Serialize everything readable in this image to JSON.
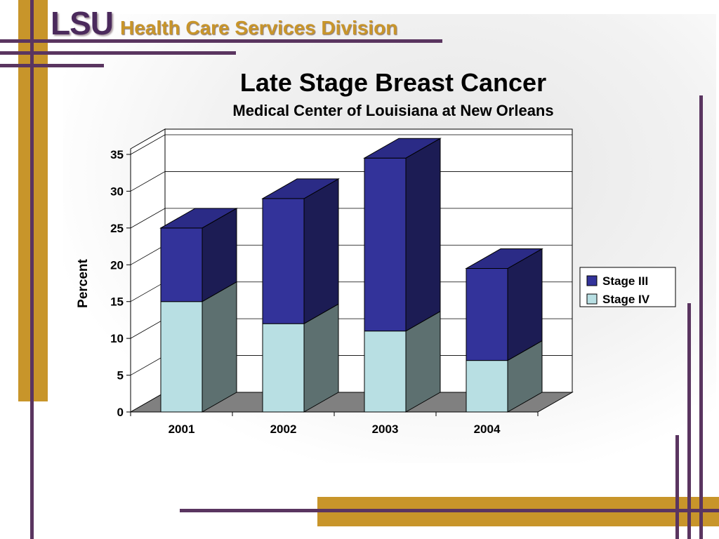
{
  "header": {
    "logo_text": "LSU",
    "division_text": "Health Care Services Division"
  },
  "colors": {
    "purple": "#5a3560",
    "gold": "#c8952a",
    "stage_iii": "#33339a",
    "stage_iv": "#b8dfe3"
  },
  "chart_data": {
    "type": "bar",
    "stacked": true,
    "three_d": true,
    "title": "Late Stage Breast Cancer",
    "subtitle": "Medical Center of Louisiana at New Orleans",
    "ylabel": "Percent",
    "xlabel": "",
    "categories": [
      "2001",
      "2002",
      "2003",
      "2004"
    ],
    "series": [
      {
        "name": "Stage IV",
        "values": [
          15,
          12,
          11,
          7
        ]
      },
      {
        "name": "Stage III",
        "values": [
          10,
          17,
          23.5,
          12.5
        ]
      }
    ],
    "legend_entries": [
      "Stage III",
      "Stage IV"
    ],
    "ylim": [
      0,
      35
    ],
    "yticks": [
      "0",
      "5",
      "10",
      "15",
      "20",
      "25",
      "30",
      "35"
    ],
    "grid": true,
    "legend_position": "right"
  }
}
